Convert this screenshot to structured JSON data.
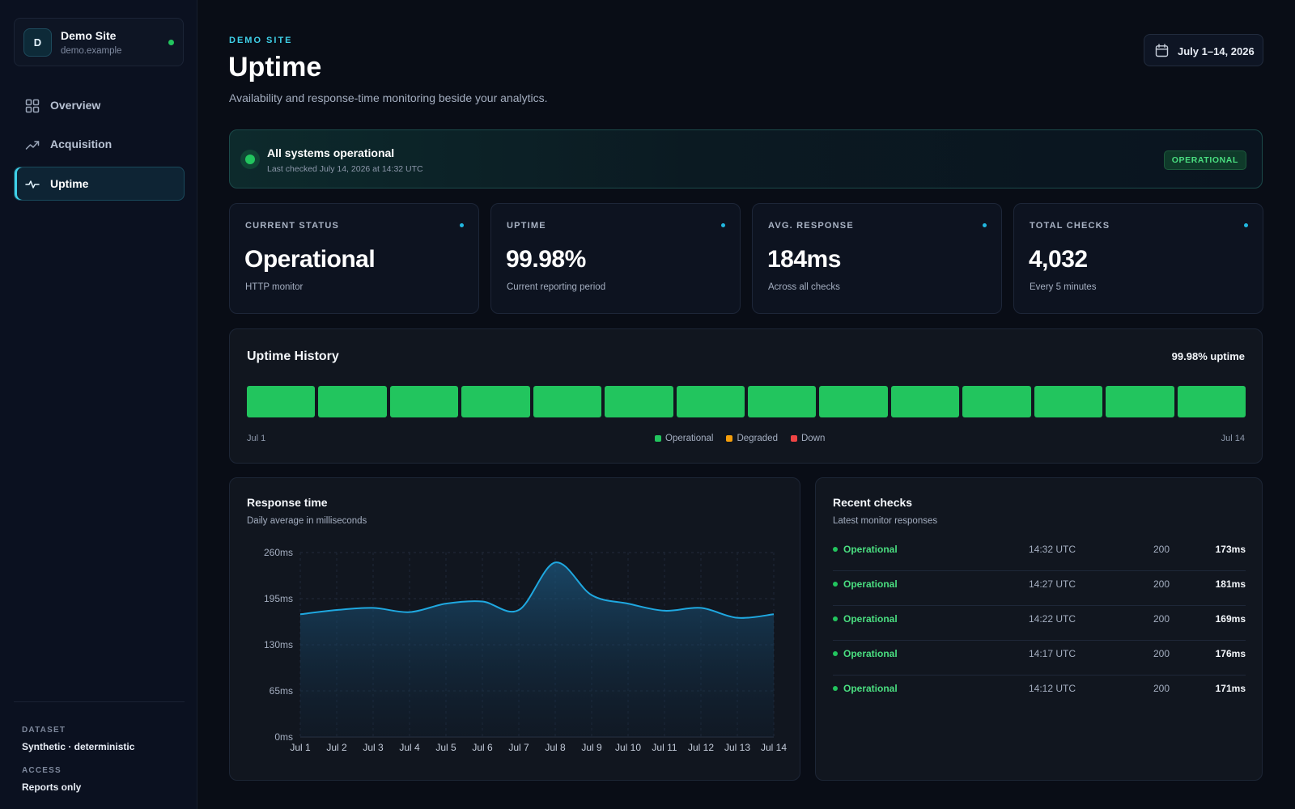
{
  "site": {
    "initial": "D",
    "name": "Demo Site",
    "domain": "demo.example"
  },
  "nav": [
    {
      "label": "Overview",
      "icon": "grid-icon",
      "active": false
    },
    {
      "label": "Acquisition",
      "icon": "trend-icon",
      "active": false
    },
    {
      "label": "Uptime",
      "icon": "pulse-icon",
      "active": true
    }
  ],
  "sidebar_meta": {
    "dataset_label": "DATASET",
    "dataset_value": "Synthetic · deterministic",
    "access_label": "ACCESS",
    "access_value": "Reports only"
  },
  "header": {
    "eyebrow": "DEMO SITE",
    "title": "Uptime",
    "subtitle": "Availability and response-time monitoring beside your analytics.",
    "date_range": "July 1–14, 2026"
  },
  "banner": {
    "title": "All systems operational",
    "subtitle": "Last checked July 14, 2026 at 14:32 UTC",
    "badge": "OPERATIONAL"
  },
  "kpis": [
    {
      "label": "CURRENT STATUS",
      "value": "Operational",
      "sub": "HTTP monitor"
    },
    {
      "label": "UPTIME",
      "value": "99.98%",
      "sub": "Current reporting period"
    },
    {
      "label": "AVG. RESPONSE",
      "value": "184ms",
      "sub": "Across all checks"
    },
    {
      "label": "TOTAL CHECKS",
      "value": "4,032",
      "sub": "Every 5 minutes"
    }
  ],
  "history": {
    "title": "Uptime History",
    "summary": "99.98% uptime",
    "start_label": "Jul 1",
    "end_label": "Jul 14",
    "days": [
      "operational",
      "operational",
      "operational",
      "operational",
      "operational",
      "operational",
      "operational",
      "operational",
      "operational",
      "operational",
      "operational",
      "operational",
      "operational",
      "operational"
    ],
    "legend": [
      {
        "label": "Operational",
        "color": "#22c55e"
      },
      {
        "label": "Degraded",
        "color": "#f59e0b"
      },
      {
        "label": "Down",
        "color": "#ef4444"
      }
    ]
  },
  "response": {
    "title": "Response time",
    "subtitle": "Daily average in milliseconds"
  },
  "chart_data": {
    "type": "area",
    "categories": [
      "Jul 1",
      "Jul 2",
      "Jul 3",
      "Jul 4",
      "Jul 5",
      "Jul 6",
      "Jul 7",
      "Jul 8",
      "Jul 9",
      "Jul 10",
      "Jul 11",
      "Jul 12",
      "Jul 13",
      "Jul 14"
    ],
    "values": [
      173,
      179,
      182,
      176,
      188,
      191,
      179,
      246,
      200,
      188,
      178,
      182,
      168,
      173
    ],
    "y_ticks": [
      "0ms",
      "65ms",
      "130ms",
      "195ms",
      "260ms"
    ],
    "ylim": [
      0,
      260
    ],
    "grid": true,
    "line_color": "#1fa8e0"
  },
  "checks": {
    "title": "Recent checks",
    "subtitle": "Latest monitor responses",
    "rows": [
      {
        "status": "Operational",
        "time": "14:32 UTC",
        "code": "200",
        "ms": "173ms"
      },
      {
        "status": "Operational",
        "time": "14:27 UTC",
        "code": "200",
        "ms": "181ms"
      },
      {
        "status": "Operational",
        "time": "14:22 UTC",
        "code": "200",
        "ms": "169ms"
      },
      {
        "status": "Operational",
        "time": "14:17 UTC",
        "code": "200",
        "ms": "176ms"
      },
      {
        "status": "Operational",
        "time": "14:12 UTC",
        "code": "200",
        "ms": "171ms"
      }
    ]
  }
}
